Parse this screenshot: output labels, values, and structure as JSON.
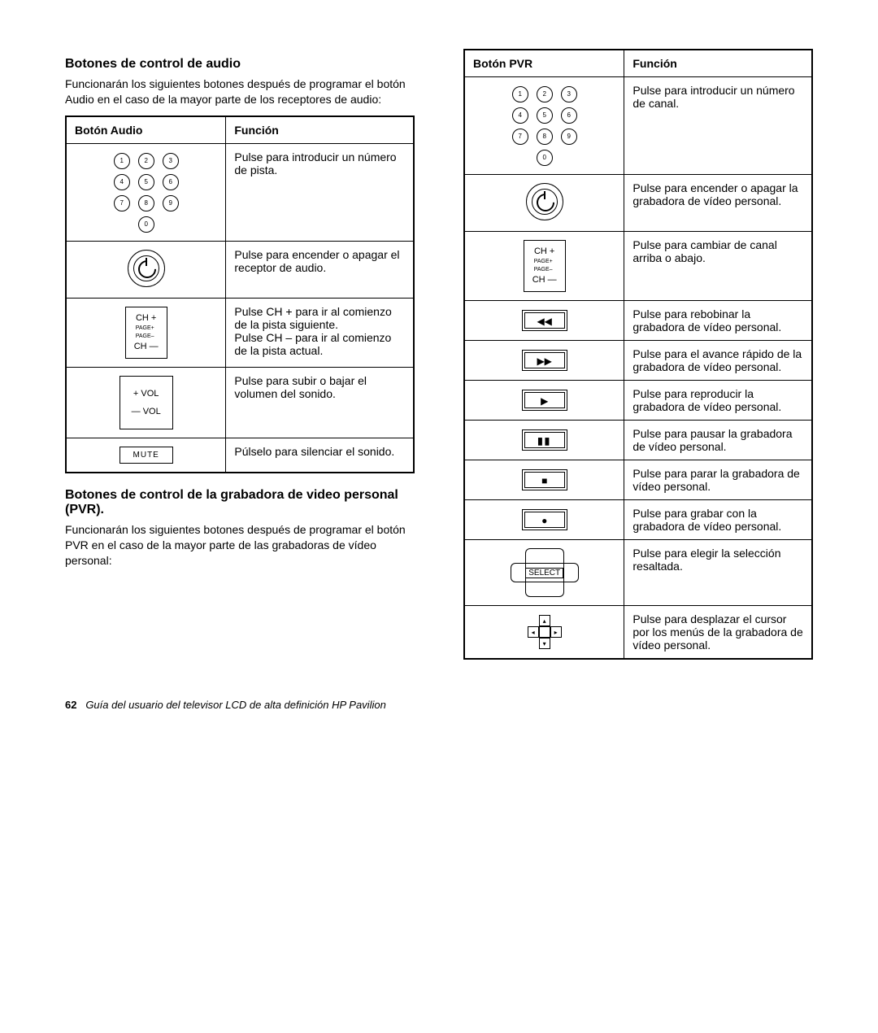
{
  "audio": {
    "heading": "Botones de control de audio",
    "intro": "Funcionarán los siguientes botones después de programar el botón Audio en el caso de la mayor parte de los receptores de audio:",
    "header_button": "Botón Audio",
    "header_func": "Función",
    "rows": {
      "keypad": "Pulse para introducir un número de pista.",
      "power": "Pulse para encender o apagar el receptor de audio.",
      "ch": "Pulse CH + para ir al comienzo de la pista siguiente.\nPulse CH – para ir al comienzo de la pista actual.",
      "vol": "Pulse para subir o bajar el volumen del sonido.",
      "mute": "Púlselo para silenciar el sonido."
    },
    "labels": {
      "ch_plus": "CH +",
      "ch_minus": "CH —",
      "page_plus": "PAGE+",
      "page_minus": "PAGE–",
      "vol_plus": "+ VOL",
      "vol_minus": "— VOL",
      "mute": "MUTE"
    }
  },
  "pvr_intro": {
    "heading": "Botones de control de la grabadora de video personal (PVR).",
    "intro": "Funcionarán los siguientes botones después de programar el botón PVR en el caso de la mayor parte de las grabadoras de vídeo personal:"
  },
  "pvr": {
    "header_button": "Botón PVR",
    "header_func": "Función",
    "rows": {
      "keypad": "Pulse para introducir un número de canal.",
      "power": "Pulse para encender o apagar la grabadora de vídeo personal.",
      "ch": "Pulse para cambiar de canal arriba o abajo.",
      "rew": "Pulse para rebobinar la grabadora de vídeo personal.",
      "ff": "Pulse para el avance rápido de la grabadora de vídeo personal.",
      "play": "Pulse para reproducir la grabadora de vídeo personal.",
      "pause": "Pulse para pausar la grabadora de vídeo personal.",
      "stop": "Pulse para parar la grabadora de vídeo personal.",
      "record": "Pulse para grabar con la grabadora de vídeo personal.",
      "select": "Pulse para elegir la selección resaltada.",
      "nav": "Pulse para desplazar el cursor por los menús de la grabadora de vídeo personal."
    },
    "select_label": "SELECT"
  },
  "footer": {
    "page": "62",
    "title": "Guía del usuario del televisor LCD de alta definición HP Pavilion"
  }
}
